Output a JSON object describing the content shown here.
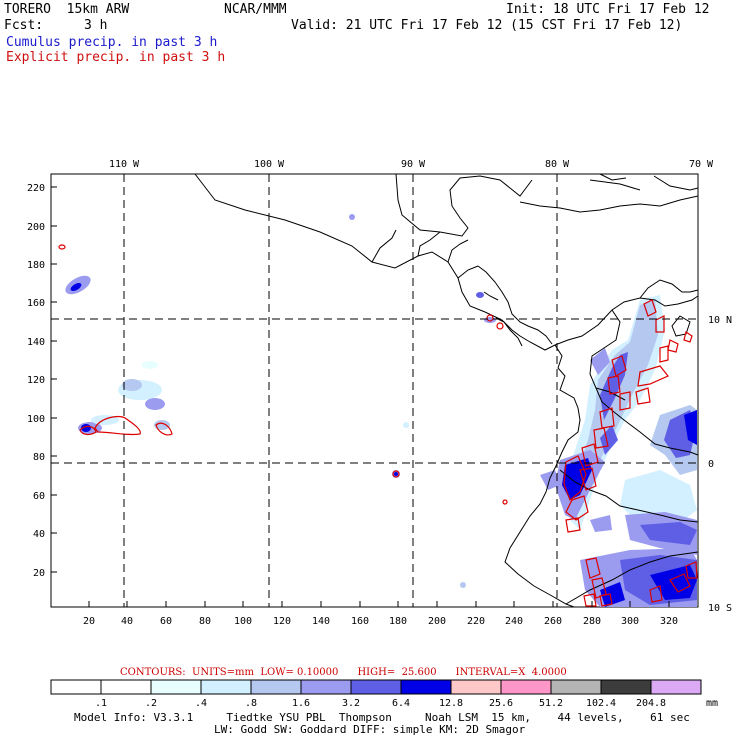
{
  "header": {
    "model": "TORERO  15km ARW",
    "org": "NCAR/MMM",
    "init": "Init: 18 UTC Fri 17 Feb 12",
    "fcst_label": "Fcst:",
    "fcst_value": "3 h",
    "valid": "Valid: 21 UTC Fri 17 Feb 12 (15 CST Fri 17 Feb 12)",
    "field1": "Cumulus precip. in past 3 h",
    "field2": "Explicit precip. in past 3 h"
  },
  "map": {
    "top_lon_labels": [
      "110 W",
      "100 W",
      "90 W",
      "80 W",
      "70 W"
    ],
    "right_lat_labels": [
      "10 N",
      "0",
      "10 S"
    ],
    "x_ticks": [
      "20",
      "40",
      "60",
      "80",
      "100",
      "120",
      "140",
      "160",
      "180",
      "200",
      "220",
      "240",
      "260",
      "280",
      "300",
      "320"
    ],
    "y_ticks": [
      "20",
      "40",
      "60",
      "80",
      "100",
      "120",
      "140",
      "160",
      "180",
      "200",
      "220"
    ],
    "x_range": [
      0,
      334
    ],
    "y_range": [
      0,
      225
    ]
  },
  "contour_info": "CONTOURS:  UNITS=mm  LOW= 0.10000      HIGH=  25.600      INTERVAL=X  4.0000",
  "colorbar": {
    "labels": [
      ".1",
      ".2",
      ".4",
      ".8",
      "1.6",
      "3.2",
      "6.4",
      "12.8",
      "25.6",
      "51.2",
      "102.4",
      "204.8"
    ],
    "unit": "mm",
    "colors": [
      "#ffffff",
      "#ffffff",
      "#e8ffff",
      "#d2f0ff",
      "#b4c8f0",
      "#9b9bf0",
      "#5f5fe6",
      "#0000e6",
      "#ffc8c8",
      "#ff96c8",
      "#b4b4b4",
      "#3c3c3c",
      "#dcaaf5"
    ]
  },
  "model_info": {
    "line1": "Model Info: V3.3.1     Tiedtke YSU PBL  Thompson     Noah LSM  15 km,    44 levels,    61 sec",
    "line2": "LW: Godd SW: Goddard DIFF: simple KM: 2D Smagor"
  }
}
